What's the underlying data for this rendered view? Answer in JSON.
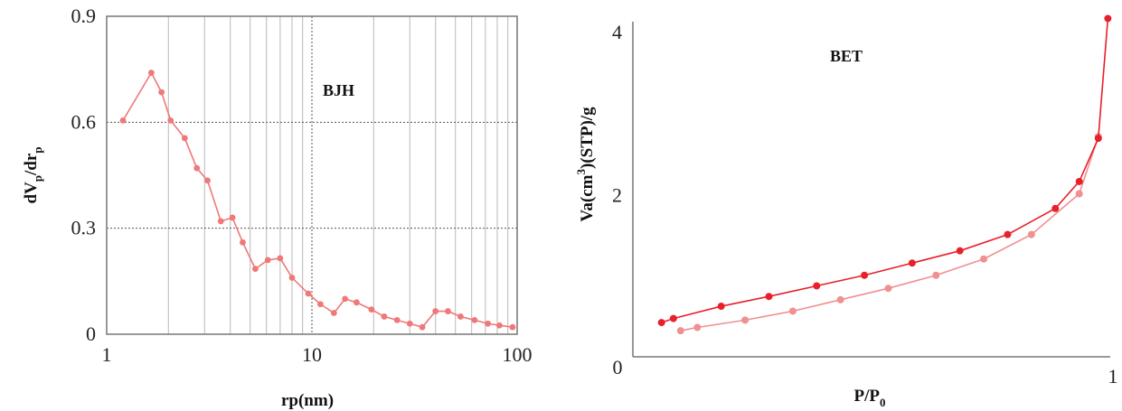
{
  "chart_data": [
    {
      "type": "line",
      "name": "bjh",
      "annotation": "BJH",
      "xlabel": "rp(nm)",
      "ylabel": "dV",
      "ylabel_sub": "p",
      "ylabel_mid": "/dr",
      "ylabel_sub2": "p",
      "x_scale": "log",
      "xlim": [
        1,
        100
      ],
      "ylim": [
        0,
        0.9
      ],
      "x_ticks": [
        1,
        10,
        100
      ],
      "x_tick_labels": [
        "1",
        "10",
        "100"
      ],
      "y_ticks": [
        0,
        0.3,
        0.6,
        0.9
      ],
      "y_tick_labels": [
        "0",
        "0.3",
        "0.6",
        "0.9"
      ],
      "grid": true,
      "color": "#f07878",
      "series": [
        {
          "x": [
            1.2,
            1.65,
            1.85,
            2.05,
            2.4,
            2.75,
            3.1,
            3.6,
            4.1,
            4.6,
            5.3,
            6.1,
            7.0,
            8.0,
            9.6,
            11.0,
            12.8,
            14.5,
            16.5,
            19.5,
            22.5,
            26.0,
            30.0,
            34.5,
            40.0,
            46.0,
            53.0,
            62.0,
            72.0,
            82.0,
            95.0
          ],
          "y": [
            0.605,
            0.74,
            0.685,
            0.605,
            0.555,
            0.47,
            0.435,
            0.32,
            0.33,
            0.26,
            0.185,
            0.21,
            0.215,
            0.16,
            0.115,
            0.085,
            0.06,
            0.1,
            0.09,
            0.07,
            0.05,
            0.04,
            0.03,
            0.02,
            0.065,
            0.065,
            0.05,
            0.04,
            0.03,
            0.025,
            0.02
          ]
        }
      ]
    },
    {
      "type": "line",
      "name": "bet",
      "annotation": "BET",
      "xlabel": "P/P",
      "xlabel_sub": "0",
      "ylabel": "Va(cm",
      "ylabel_sup": "3",
      "ylabel_rest": ")(STP)/g",
      "xlim": [
        0,
        1
      ],
      "ylim": [
        0,
        4
      ],
      "x_tick_labels": [
        "0",
        "1"
      ],
      "y_ticks": [
        2,
        4
      ],
      "y_tick_labels": [
        "2",
        "4"
      ],
      "grid": false,
      "colors": {
        "adsorption": "#f09090",
        "desorption": "#e8202a"
      },
      "series": [
        {
          "name": "adsorption",
          "x": [
            0.1,
            0.135,
            0.235,
            0.335,
            0.435,
            0.535,
            0.635,
            0.735,
            0.835,
            0.935,
            0.975
          ],
          "y": [
            0.32,
            0.36,
            0.45,
            0.56,
            0.7,
            0.84,
            1.0,
            1.2,
            1.5,
            2.0,
            2.7
          ]
        },
        {
          "name": "desorption",
          "x": [
            0.06,
            0.085,
            0.185,
            0.285,
            0.385,
            0.485,
            0.585,
            0.685,
            0.785,
            0.885,
            0.935,
            0.975,
            0.995
          ],
          "y": [
            0.42,
            0.47,
            0.62,
            0.74,
            0.87,
            1.0,
            1.15,
            1.3,
            1.5,
            1.82,
            2.15,
            2.68,
            4.15
          ]
        }
      ]
    }
  ]
}
